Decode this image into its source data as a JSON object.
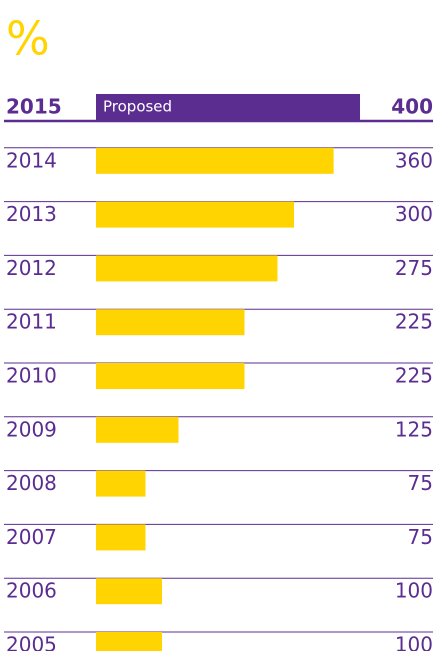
{
  "chart_data": {
    "type": "bar",
    "orientation": "horizontal",
    "title": "%",
    "categories": [
      "2015",
      "2014",
      "2013",
      "2012",
      "2011",
      "2010",
      "2009",
      "2008",
      "2007",
      "2006",
      "2005"
    ],
    "values": [
      400,
      360,
      300,
      275,
      225,
      225,
      125,
      75,
      75,
      100,
      100
    ],
    "colors": [
      "#5b2d90",
      "#ffd400",
      "#ffd400",
      "#ffd400",
      "#ffd400",
      "#ffd400",
      "#ffd400",
      "#ffd400",
      "#ffd400",
      "#ffd400",
      "#ffd400"
    ],
    "annotations": [
      {
        "category": "2015",
        "text": "Proposed"
      }
    ],
    "xlim": [
      0,
      400
    ]
  }
}
